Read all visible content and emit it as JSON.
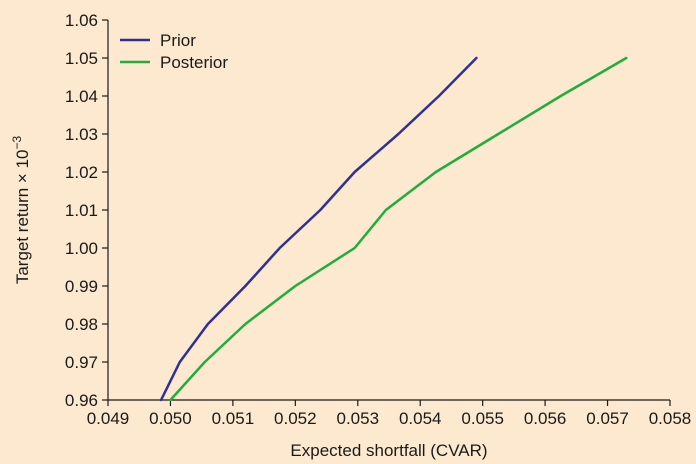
{
  "chart_data": {
    "type": "line",
    "xlabel": "Expected shortfall (CVAR)",
    "ylabel_base": "Target return × 10",
    "ylabel_exp": "−3",
    "xlim": [
      0.049,
      0.058
    ],
    "ylim": [
      0.96,
      1.06
    ],
    "x_ticks": [
      0.049,
      0.05,
      0.051,
      0.052,
      0.053,
      0.054,
      0.055,
      0.056,
      0.057,
      0.058
    ],
    "x_tick_labels": [
      "0.049",
      "0.050",
      "0.051",
      "0.052",
      "0.053",
      "0.054",
      "0.055",
      "0.056",
      "0.057",
      "0.058"
    ],
    "y_ticks": [
      0.96,
      0.97,
      0.98,
      0.99,
      1.0,
      1.01,
      1.02,
      1.03,
      1.04,
      1.05,
      1.06
    ],
    "y_tick_labels": [
      "0.96",
      "0.97",
      "0.98",
      "0.99",
      "1.00",
      "1.01",
      "1.02",
      "1.03",
      "1.04",
      "1.05",
      "1.06"
    ],
    "grid": false,
    "legend_position": "top-left",
    "series": [
      {
        "name": "Prior",
        "color": "#2e3192",
        "x": [
          0.04985,
          0.05015,
          0.0506,
          0.0512,
          0.05175,
          0.0524,
          0.05295,
          0.05365,
          0.0543,
          0.0549
        ],
        "y": [
          0.96,
          0.97,
          0.98,
          0.99,
          1.0,
          1.01,
          1.02,
          1.03,
          1.04,
          1.05
        ]
      },
      {
        "name": "Posterior",
        "color": "#1fae3c",
        "x": [
          0.05,
          0.05055,
          0.0512,
          0.052,
          0.05295,
          0.05345,
          0.05425,
          0.05525,
          0.05625,
          0.0573
        ],
        "y": [
          0.96,
          0.97,
          0.98,
          0.99,
          1.0,
          1.01,
          1.02,
          1.03,
          1.04,
          1.05
        ]
      }
    ]
  }
}
